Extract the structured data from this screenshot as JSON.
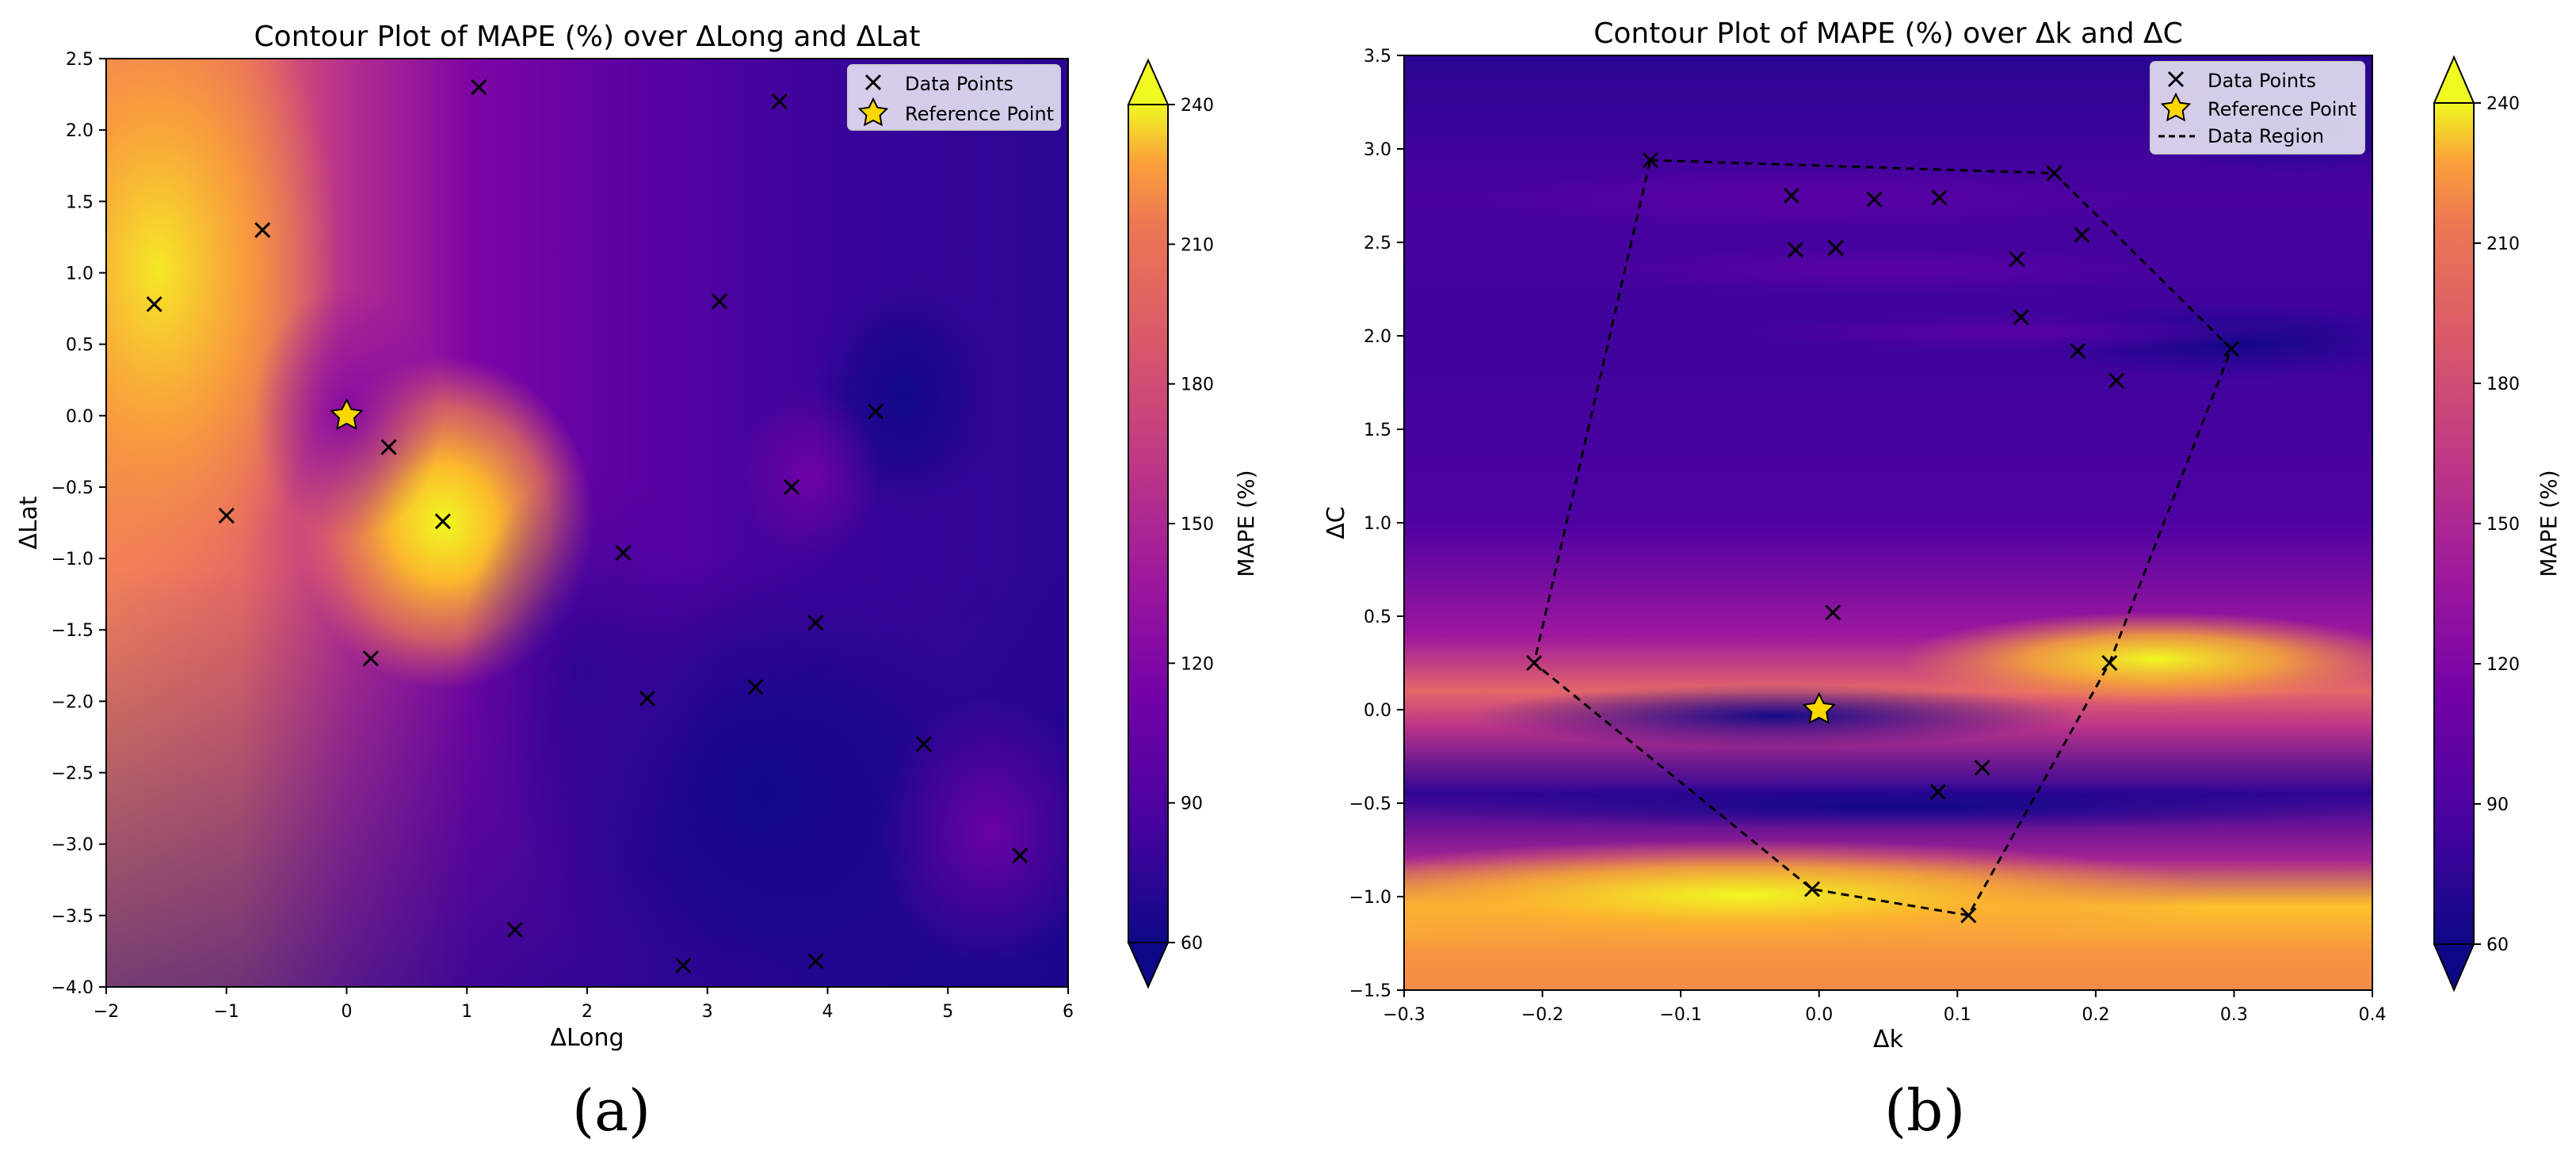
{
  "panel_labels": [
    "(a)",
    "(b)"
  ],
  "chart_data": [
    {
      "type": "contour",
      "title": "Contour Plot of MAPE (%) over ΔLong and ΔLat",
      "xlabel": "ΔLong",
      "ylabel": "ΔLat",
      "xlim": [
        -2,
        6
      ],
      "ylim": [
        -4,
        2.5
      ],
      "xticks": [
        -2,
        -1,
        0,
        1,
        2,
        3,
        4,
        5,
        6
      ],
      "yticks": [
        -4.0,
        -3.5,
        -3.0,
        -2.5,
        -2.0,
        -1.5,
        -1.0,
        -0.5,
        0.0,
        0.5,
        1.0,
        1.5,
        2.0,
        2.5
      ],
      "xtick_labels": [
        "−2",
        "−1",
        "0",
        "1",
        "2",
        "3",
        "4",
        "5",
        "6"
      ],
      "ytick_labels": [
        "−4.0",
        "−3.5",
        "−3.0",
        "−2.5",
        "−2.0",
        "−1.5",
        "−1.0",
        "−0.5",
        "0.0",
        "0.5",
        "1.0",
        "1.5",
        "2.0",
        "2.5"
      ],
      "colorbar": {
        "label": "MAPE (%)",
        "range": [
          60,
          240
        ],
        "ticks": [
          60,
          90,
          120,
          150,
          180,
          210,
          240
        ],
        "colormap": "plasma"
      },
      "legend": {
        "position": "top-right",
        "entries": [
          "Data Points",
          "Reference Point"
        ]
      },
      "data_points": [
        [
          1.1,
          2.3
        ],
        [
          3.6,
          2.2
        ],
        [
          -0.7,
          1.3
        ],
        [
          -1.6,
          0.78
        ],
        [
          3.1,
          0.8
        ],
        [
          4.4,
          0.03
        ],
        [
          0.35,
          -0.22
        ],
        [
          3.7,
          -0.5
        ],
        [
          -1.0,
          -0.7
        ],
        [
          0.8,
          -0.74
        ],
        [
          2.3,
          -0.96
        ],
        [
          3.9,
          -1.45
        ],
        [
          0.2,
          -1.7
        ],
        [
          3.4,
          -1.9
        ],
        [
          2.5,
          -1.98
        ],
        [
          4.8,
          -2.3
        ],
        [
          5.6,
          -3.08
        ],
        [
          1.4,
          -3.6
        ],
        [
          2.8,
          -3.85
        ],
        [
          3.9,
          -3.82
        ]
      ],
      "reference_point": [
        0.0,
        0.0
      ]
    },
    {
      "type": "contour",
      "title": "Contour Plot of MAPE (%) over Δk and ΔC",
      "xlabel": "Δk",
      "ylabel": "ΔC",
      "xlim": [
        -0.3,
        0.4
      ],
      "ylim": [
        -1.5,
        3.5
      ],
      "xticks": [
        -0.3,
        -0.2,
        -0.1,
        0.0,
        0.1,
        0.2,
        0.3,
        0.4
      ],
      "yticks": [
        -1.5,
        -1.0,
        -0.5,
        0.0,
        0.5,
        1.0,
        1.5,
        2.0,
        2.5,
        3.0,
        3.5
      ],
      "xtick_labels": [
        "−0.3",
        "−0.2",
        "−0.1",
        "0.0",
        "0.1",
        "0.2",
        "0.3",
        "0.4"
      ],
      "ytick_labels": [
        "−1.5",
        "−1.0",
        "−0.5",
        "0.0",
        "0.5",
        "1.0",
        "1.5",
        "2.0",
        "2.5",
        "3.0",
        "3.5"
      ],
      "colorbar": {
        "label": "MAPE (%)",
        "range": [
          60,
          240
        ],
        "ticks": [
          60,
          90,
          120,
          150,
          180,
          210,
          240
        ],
        "colormap": "plasma"
      },
      "legend": {
        "position": "top-right",
        "entries": [
          "Data Points",
          "Reference Point",
          "Data Region"
        ]
      },
      "data_points": [
        [
          -0.122,
          2.94
        ],
        [
          0.17,
          2.87
        ],
        [
          -0.02,
          2.75
        ],
        [
          0.04,
          2.73
        ],
        [
          0.087,
          2.74
        ],
        [
          -0.017,
          2.46
        ],
        [
          0.012,
          2.47
        ],
        [
          0.143,
          2.41
        ],
        [
          0.19,
          2.54
        ],
        [
          0.146,
          2.1
        ],
        [
          0.187,
          1.92
        ],
        [
          0.298,
          1.93
        ],
        [
          0.215,
          1.76
        ],
        [
          0.01,
          0.52
        ],
        [
          -0.206,
          0.25
        ],
        [
          0.21,
          0.25
        ],
        [
          0.118,
          -0.31
        ],
        [
          0.086,
          -0.44
        ],
        [
          -0.005,
          -0.96
        ],
        [
          0.108,
          -1.1
        ]
      ],
      "reference_point": [
        0.0,
        0.0
      ],
      "data_region_polygon": [
        [
          -0.122,
          2.94
        ],
        [
          0.17,
          2.87
        ],
        [
          0.298,
          1.93
        ],
        [
          0.21,
          0.25
        ],
        [
          0.108,
          -1.1
        ],
        [
          -0.005,
          -0.96
        ],
        [
          -0.206,
          0.25
        ]
      ]
    }
  ]
}
